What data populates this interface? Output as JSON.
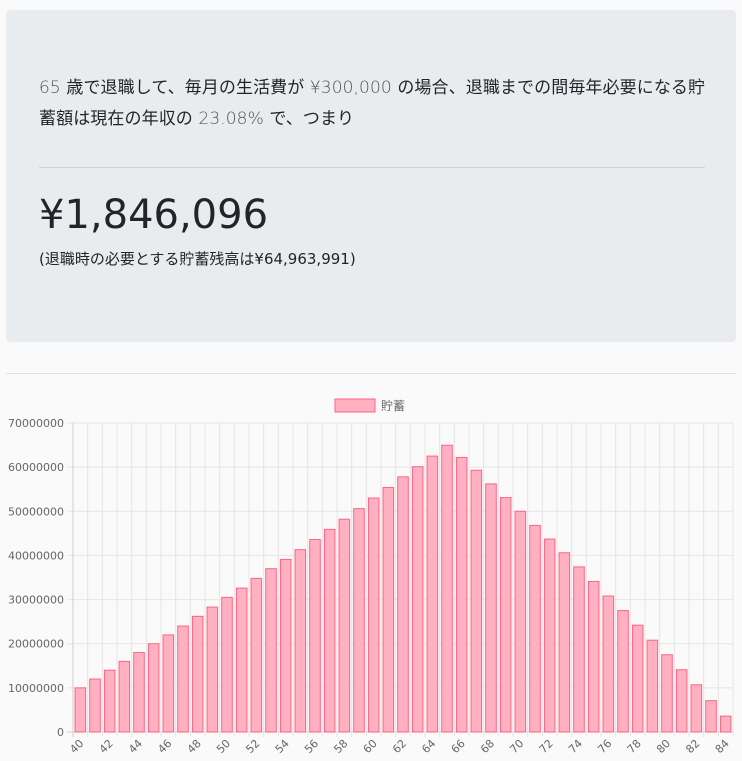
{
  "summary": {
    "retire_age": "65",
    "t1": " 歳で退職して、毎月の生活費が ",
    "monthly_cost": "¥300,000",
    "t2": " の場合、退職までの間毎年必要になる貯蓄額は現在の年収の ",
    "percent": "23.08%",
    "t3": " で、つまり",
    "annual_saving": "¥1,846,096",
    "balance_note": "(退職時の必要とする貯蓄残高は¥64,963,991)"
  },
  "colors": {
    "bar_fill": "#ffb1c1",
    "bar_border": "#ff6384",
    "grid": "#e5e5e5",
    "axis_text": "#666666"
  },
  "chart_data": {
    "type": "bar",
    "legend": {
      "position": "top",
      "entries": [
        "貯蓄"
      ]
    },
    "x": [
      40,
      41,
      42,
      43,
      44,
      45,
      46,
      47,
      48,
      49,
      50,
      51,
      52,
      53,
      54,
      55,
      56,
      57,
      58,
      59,
      60,
      61,
      62,
      63,
      64,
      65,
      66,
      67,
      68,
      69,
      70,
      71,
      72,
      73,
      74,
      75,
      76,
      77,
      78,
      79,
      80,
      81,
      82,
      83,
      84
    ],
    "xtick_labels": [
      "40",
      "42",
      "44",
      "46",
      "48",
      "50",
      "52",
      "54",
      "56",
      "58",
      "60",
      "62",
      "64",
      "66",
      "68",
      "70",
      "72",
      "74",
      "76",
      "78",
      "80",
      "82",
      "84"
    ],
    "series": [
      {
        "name": "貯蓄",
        "values": [
          10000000,
          12000000,
          14000000,
          16000000,
          18000000,
          20000000,
          22000000,
          24000000,
          26200000,
          28300000,
          30500000,
          32600000,
          34800000,
          37000000,
          39100000,
          41300000,
          43600000,
          45900000,
          48200000,
          50600000,
          53000000,
          55400000,
          57800000,
          60100000,
          62500000,
          64963991,
          62200000,
          59300000,
          56200000,
          53100000,
          50000000,
          46800000,
          43700000,
          40600000,
          37400000,
          34100000,
          30800000,
          27500000,
          24200000,
          20800000,
          17500000,
          14100000,
          10700000,
          7100000,
          3600000
        ]
      }
    ],
    "ytick_labels": [
      "0",
      "10000000",
      "20000000",
      "30000000",
      "40000000",
      "50000000",
      "60000000",
      "70000000"
    ],
    "ylim": [
      0,
      70000000
    ],
    "grid": true
  }
}
